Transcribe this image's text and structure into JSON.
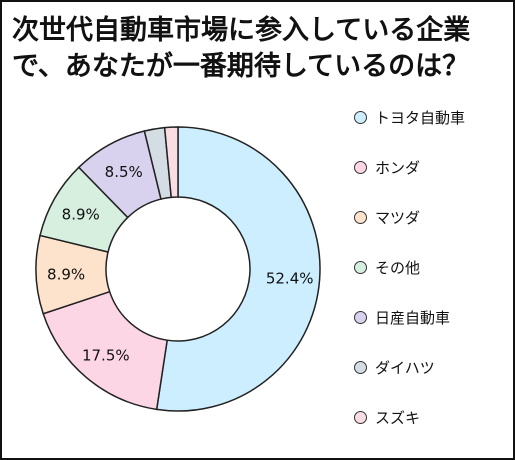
{
  "title_lines": [
    "次世代自動車市場に参入している企業",
    "で、あなたが一番期待しているのは？"
  ],
  "chart_data": {
    "type": "pie",
    "donut": true,
    "title": "次世代自動車市場に参入している企業で、あなたが一番期待しているのは？",
    "categories": [
      "トヨタ自動車",
      "ホンダ",
      "マツダ",
      "その他",
      "日産自動車",
      "ダイハツ",
      "スズキ"
    ],
    "values": [
      52.4,
      17.5,
      8.9,
      8.9,
      8.5,
      2.3,
      1.5
    ],
    "data_labels": [
      "52.4%",
      "17.5%",
      "8.9%",
      "8.9%",
      "8.5%",
      "",
      ""
    ],
    "colors": [
      "#cceeff",
      "#fdd6e6",
      "#fde3cc",
      "#d6efdf",
      "#d8d2ee",
      "#d3dde3",
      "#f9dde3"
    ],
    "start": "top",
    "direction": "clockwise",
    "legend_position": "right"
  }
}
